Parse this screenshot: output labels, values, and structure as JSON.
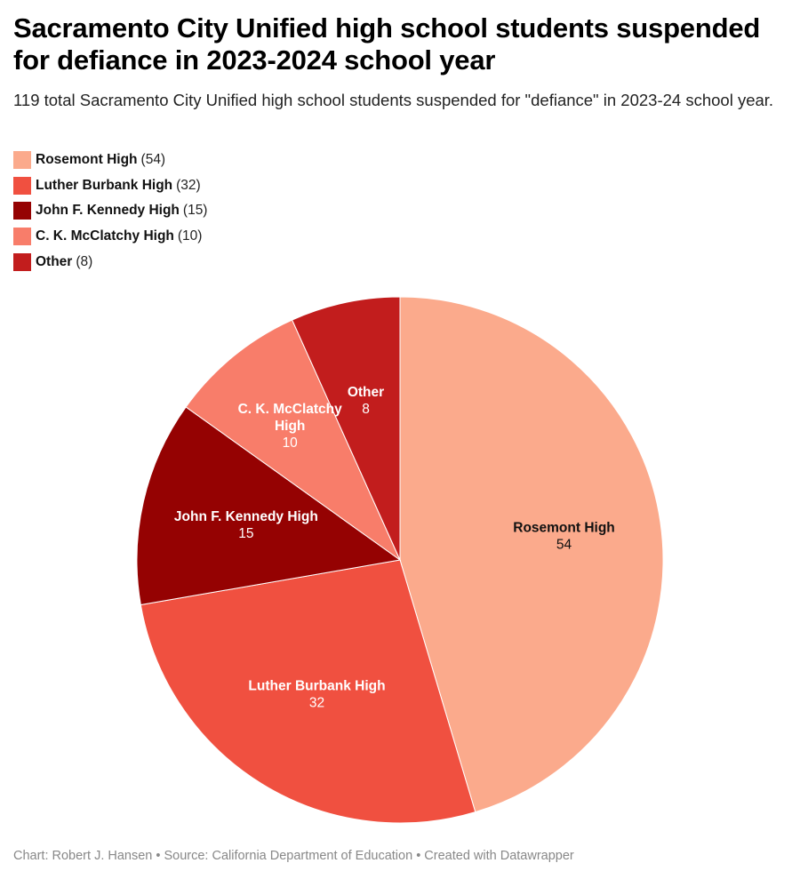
{
  "title": "Sacramento City Unified high school students suspended for defiance in 2023-2024 school year",
  "subtitle": "119 total Sacramento City Unified high school students suspended for \"defiance\" in 2023-24 school year.",
  "footer": "Chart: Robert J. Hansen • Source: California Department of Education • Created with Datawrapper",
  "legend": [
    {
      "name": "Rosemont High",
      "count": "(54)",
      "color": "#fbaa8c"
    },
    {
      "name": "Luther Burbank High",
      "count": "(32)",
      "color": "#f05040"
    },
    {
      "name": "John F. Kennedy High",
      "count": "(15)",
      "color": "#950202"
    },
    {
      "name": "C. K. McClatchy High",
      "count": "(10)",
      "color": "#f87d6a"
    },
    {
      "name": "Other",
      "count": "(8)",
      "color": "#c21d1d"
    }
  ],
  "chart_data": {
    "type": "pie",
    "total": 119,
    "slices": [
      {
        "label": "Rosemont High",
        "value": 54,
        "color": "#fbaa8c",
        "label_color": "#111111"
      },
      {
        "label": "Luther Burbank High",
        "value": 32,
        "color": "#f05040",
        "label_color": "#ffffff"
      },
      {
        "label": "John F. Kennedy High",
        "value": 15,
        "color": "#950202",
        "label_color": "#ffffff"
      },
      {
        "label": "C. K. McClatchy High",
        "value": 10,
        "color": "#f87d6a",
        "label_color": "#ffffff"
      },
      {
        "label": "Other",
        "value": 8,
        "color": "#c21d1d",
        "label_color": "#ffffff"
      }
    ]
  }
}
